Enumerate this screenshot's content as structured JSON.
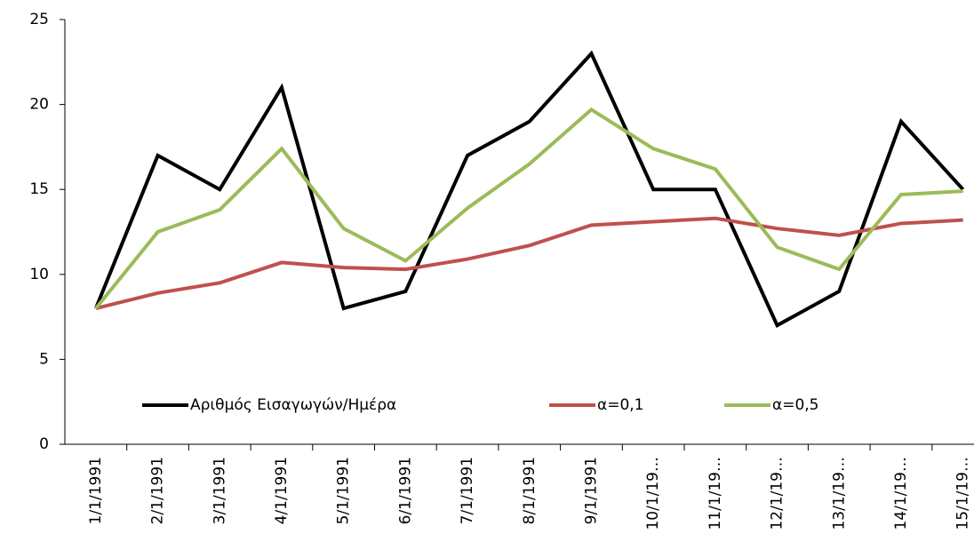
{
  "chart_data": {
    "type": "line",
    "categories": [
      "1/1/1991",
      "2/1/1991",
      "3/1/1991",
      "4/1/1991",
      "5/1/1991",
      "6/1/1991",
      "7/1/1991",
      "8/1/1991",
      "9/1/1991",
      "10/1/19…",
      "11/1/19…",
      "12/1/19…",
      "13/1/19…",
      "14/1/19…",
      "15/1/19…"
    ],
    "series": [
      {
        "name": "Αριθμός Εισαγωγών/Ημέρα",
        "color": "#000000",
        "values": [
          8,
          17,
          15,
          21,
          8,
          9,
          17,
          19,
          23,
          15,
          15,
          7,
          9,
          19,
          15
        ]
      },
      {
        "name": "α=0,1",
        "color": "#c0504d",
        "values": [
          8,
          8.9,
          9.5,
          10.7,
          10.4,
          10.3,
          10.9,
          11.7,
          12.9,
          13.1,
          13.3,
          12.7,
          12.3,
          13.0,
          13.2
        ]
      },
      {
        "name": "α=0,5",
        "color": "#9bbb59",
        "values": [
          8,
          12.5,
          13.8,
          17.4,
          12.7,
          10.8,
          13.9,
          16.5,
          19.7,
          17.4,
          16.2,
          11.6,
          10.3,
          14.7,
          14.9
        ]
      }
    ],
    "ylim": [
      0,
      25
    ],
    "yticks": [
      0,
      5,
      10,
      15,
      20,
      25
    ],
    "grid": false,
    "legend": "lower-center"
  }
}
